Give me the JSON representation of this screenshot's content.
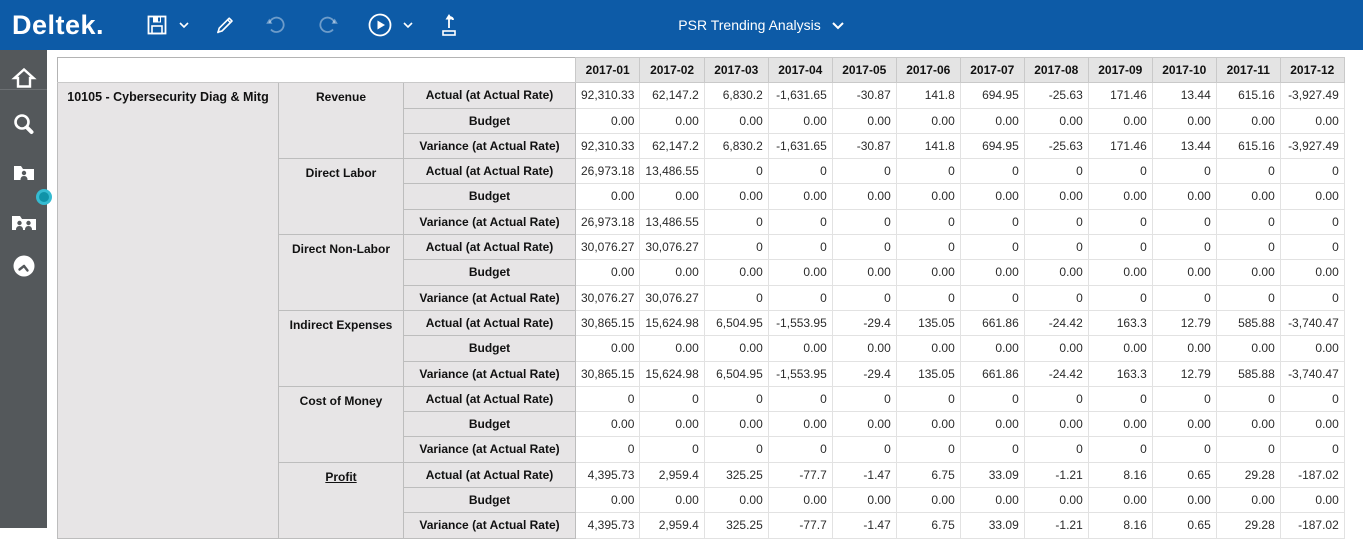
{
  "topbar": {
    "logo": "Deltek.",
    "title": "PSR Trending Analysis",
    "icons": [
      "save-icon",
      "save-dropdown-chevron",
      "edit-pencil-icon",
      "undo-icon",
      "redo-icon",
      "run-play-icon",
      "run-dropdown-chevron",
      "submit-export-icon",
      "title-dropdown-chevron"
    ],
    "colors": {
      "bar_blue": "#0d5ba7",
      "disabled_icon": "rgba(255,255,255,0.4)"
    }
  },
  "sidebar": {
    "color": "#54585b",
    "handle_color": "#35bbd1",
    "items": [
      {
        "icon": "home-icon"
      },
      {
        "icon": "search-icon"
      },
      {
        "icon": "employee-folder-icon"
      },
      {
        "icon": "employees-group-icon"
      },
      {
        "icon": "clock-icon"
      }
    ]
  },
  "table": {
    "project": "10105 - Cybersecurity Diag & Mitg",
    "months": [
      "2017-01",
      "2017-02",
      "2017-03",
      "2017-04",
      "2017-05",
      "2017-06",
      "2017-07",
      "2017-08",
      "2017-09",
      "2017-10",
      "2017-11",
      "2017-12"
    ],
    "metric_labels": [
      "Actual (at Actual Rate)",
      "Budget",
      "Variance (at Actual Rate)"
    ],
    "groups": [
      {
        "name": "Revenue",
        "link": false,
        "actual": [
          "92,310.33",
          "62,147.2",
          "6,830.2",
          "-1,631.65",
          "-30.87",
          "141.8",
          "694.95",
          "-25.63",
          "171.46",
          "13.44",
          "615.16",
          "-3,927.49"
        ],
        "budget": [
          "0.00",
          "0.00",
          "0.00",
          "0.00",
          "0.00",
          "0.00",
          "0.00",
          "0.00",
          "0.00",
          "0.00",
          "0.00",
          "0.00"
        ],
        "variance": [
          "92,310.33",
          "62,147.2",
          "6,830.2",
          "-1,631.65",
          "-30.87",
          "141.8",
          "694.95",
          "-25.63",
          "171.46",
          "13.44",
          "615.16",
          "-3,927.49"
        ]
      },
      {
        "name": "Direct Labor",
        "link": false,
        "actual": [
          "26,973.18",
          "13,486.55",
          "0",
          "0",
          "0",
          "0",
          "0",
          "0",
          "0",
          "0",
          "0",
          "0"
        ],
        "budget": [
          "0.00",
          "0.00",
          "0.00",
          "0.00",
          "0.00",
          "0.00",
          "0.00",
          "0.00",
          "0.00",
          "0.00",
          "0.00",
          "0.00"
        ],
        "variance": [
          "26,973.18",
          "13,486.55",
          "0",
          "0",
          "0",
          "0",
          "0",
          "0",
          "0",
          "0",
          "0",
          "0"
        ]
      },
      {
        "name": "Direct Non-Labor",
        "link": false,
        "actual": [
          "30,076.27",
          "30,076.27",
          "0",
          "0",
          "0",
          "0",
          "0",
          "0",
          "0",
          "0",
          "0",
          "0"
        ],
        "budget": [
          "0.00",
          "0.00",
          "0.00",
          "0.00",
          "0.00",
          "0.00",
          "0.00",
          "0.00",
          "0.00",
          "0.00",
          "0.00",
          "0.00"
        ],
        "variance": [
          "30,076.27",
          "30,076.27",
          "0",
          "0",
          "0",
          "0",
          "0",
          "0",
          "0",
          "0",
          "0",
          "0"
        ]
      },
      {
        "name": "Indirect Expenses",
        "link": false,
        "actual": [
          "30,865.15",
          "15,624.98",
          "6,504.95",
          "-1,553.95",
          "-29.4",
          "135.05",
          "661.86",
          "-24.42",
          "163.3",
          "12.79",
          "585.88",
          "-3,740.47"
        ],
        "budget": [
          "0.00",
          "0.00",
          "0.00",
          "0.00",
          "0.00",
          "0.00",
          "0.00",
          "0.00",
          "0.00",
          "0.00",
          "0.00",
          "0.00"
        ],
        "variance": [
          "30,865.15",
          "15,624.98",
          "6,504.95",
          "-1,553.95",
          "-29.4",
          "135.05",
          "661.86",
          "-24.42",
          "163.3",
          "12.79",
          "585.88",
          "-3,740.47"
        ]
      },
      {
        "name": "Cost of Money",
        "link": false,
        "actual": [
          "0",
          "0",
          "0",
          "0",
          "0",
          "0",
          "0",
          "0",
          "0",
          "0",
          "0",
          "0"
        ],
        "budget": [
          "0.00",
          "0.00",
          "0.00",
          "0.00",
          "0.00",
          "0.00",
          "0.00",
          "0.00",
          "0.00",
          "0.00",
          "0.00",
          "0.00"
        ],
        "variance": [
          "0",
          "0",
          "0",
          "0",
          "0",
          "0",
          "0",
          "0",
          "0",
          "0",
          "0",
          "0"
        ]
      },
      {
        "name": "Profit",
        "link": true,
        "actual": [
          "4,395.73",
          "2,959.4",
          "325.25",
          "-77.7",
          "-1.47",
          "6.75",
          "33.09",
          "-1.21",
          "8.16",
          "0.65",
          "29.28",
          "-187.02"
        ],
        "budget": [
          "0.00",
          "0.00",
          "0.00",
          "0.00",
          "0.00",
          "0.00",
          "0.00",
          "0.00",
          "0.00",
          "0.00",
          "0.00",
          "0.00"
        ],
        "variance": [
          "4,395.73",
          "2,959.4",
          "325.25",
          "-77.7",
          "-1.47",
          "6.75",
          "33.09",
          "-1.21",
          "8.16",
          "0.65",
          "29.28",
          "-187.02"
        ]
      }
    ]
  }
}
